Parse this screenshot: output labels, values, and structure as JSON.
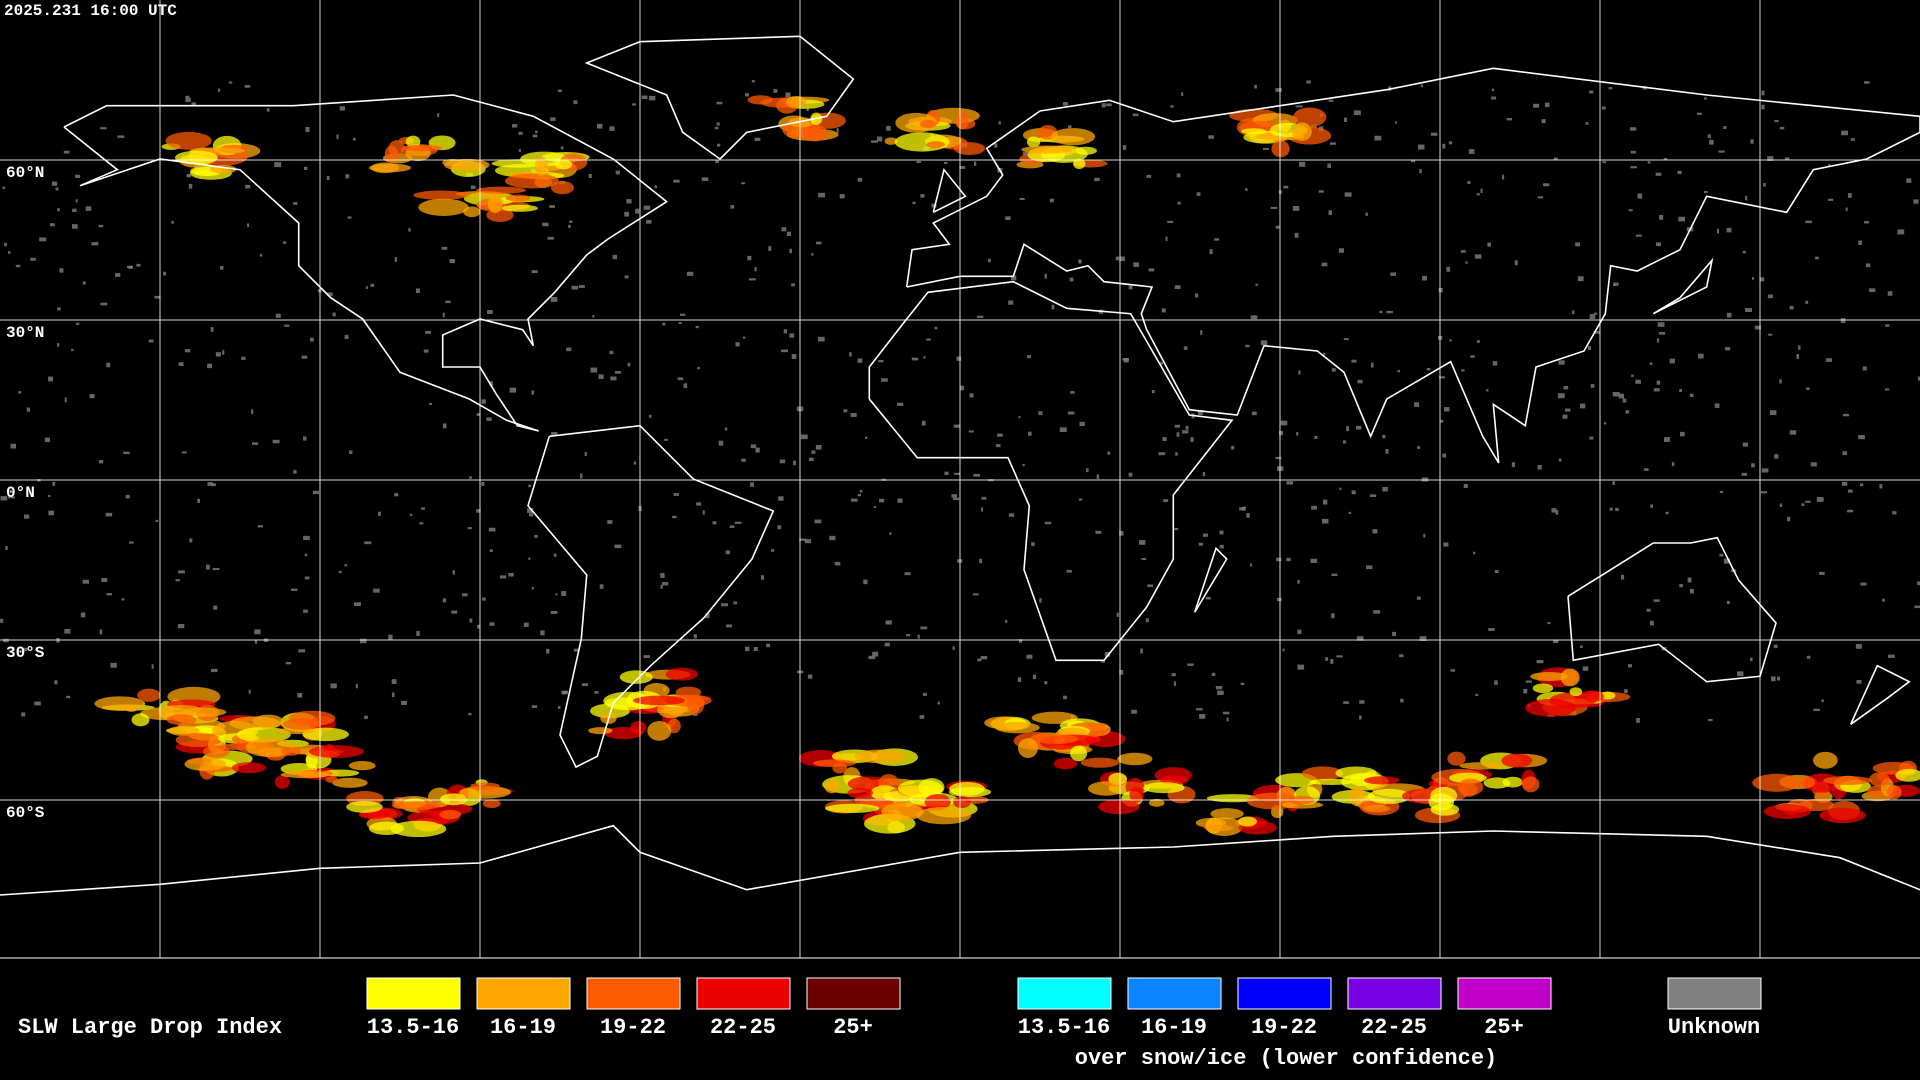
{
  "header": {
    "timestamp": "2025.231 16:00 UTC"
  },
  "map": {
    "lat_labels": [
      "60°N",
      "30°N",
      "0°N",
      "30°S",
      "60°S"
    ]
  },
  "legend": {
    "title": "SLW Large Drop Index",
    "groups": [
      {
        "items": [
          {
            "label": "13.5-16",
            "color": "#ffff00"
          },
          {
            "label": "16-19",
            "color": "#ffa500"
          },
          {
            "label": "19-22",
            "color": "#ff5a00"
          },
          {
            "label": "22-25",
            "color": "#ee0000"
          },
          {
            "label": "25+",
            "color": "#6b0000"
          }
        ]
      },
      {
        "note": "over snow/ice (lower confidence)",
        "items": [
          {
            "label": "13.5-16",
            "color": "#00ffff"
          },
          {
            "label": "16-19",
            "color": "#0a84ff"
          },
          {
            "label": "19-22",
            "color": "#0000ff"
          },
          {
            "label": "22-25",
            "color": "#7a00e6"
          },
          {
            "label": "25+",
            "color": "#c000c8"
          }
        ]
      }
    ],
    "unknown": {
      "label": "Unknown",
      "color": "#808080"
    }
  }
}
